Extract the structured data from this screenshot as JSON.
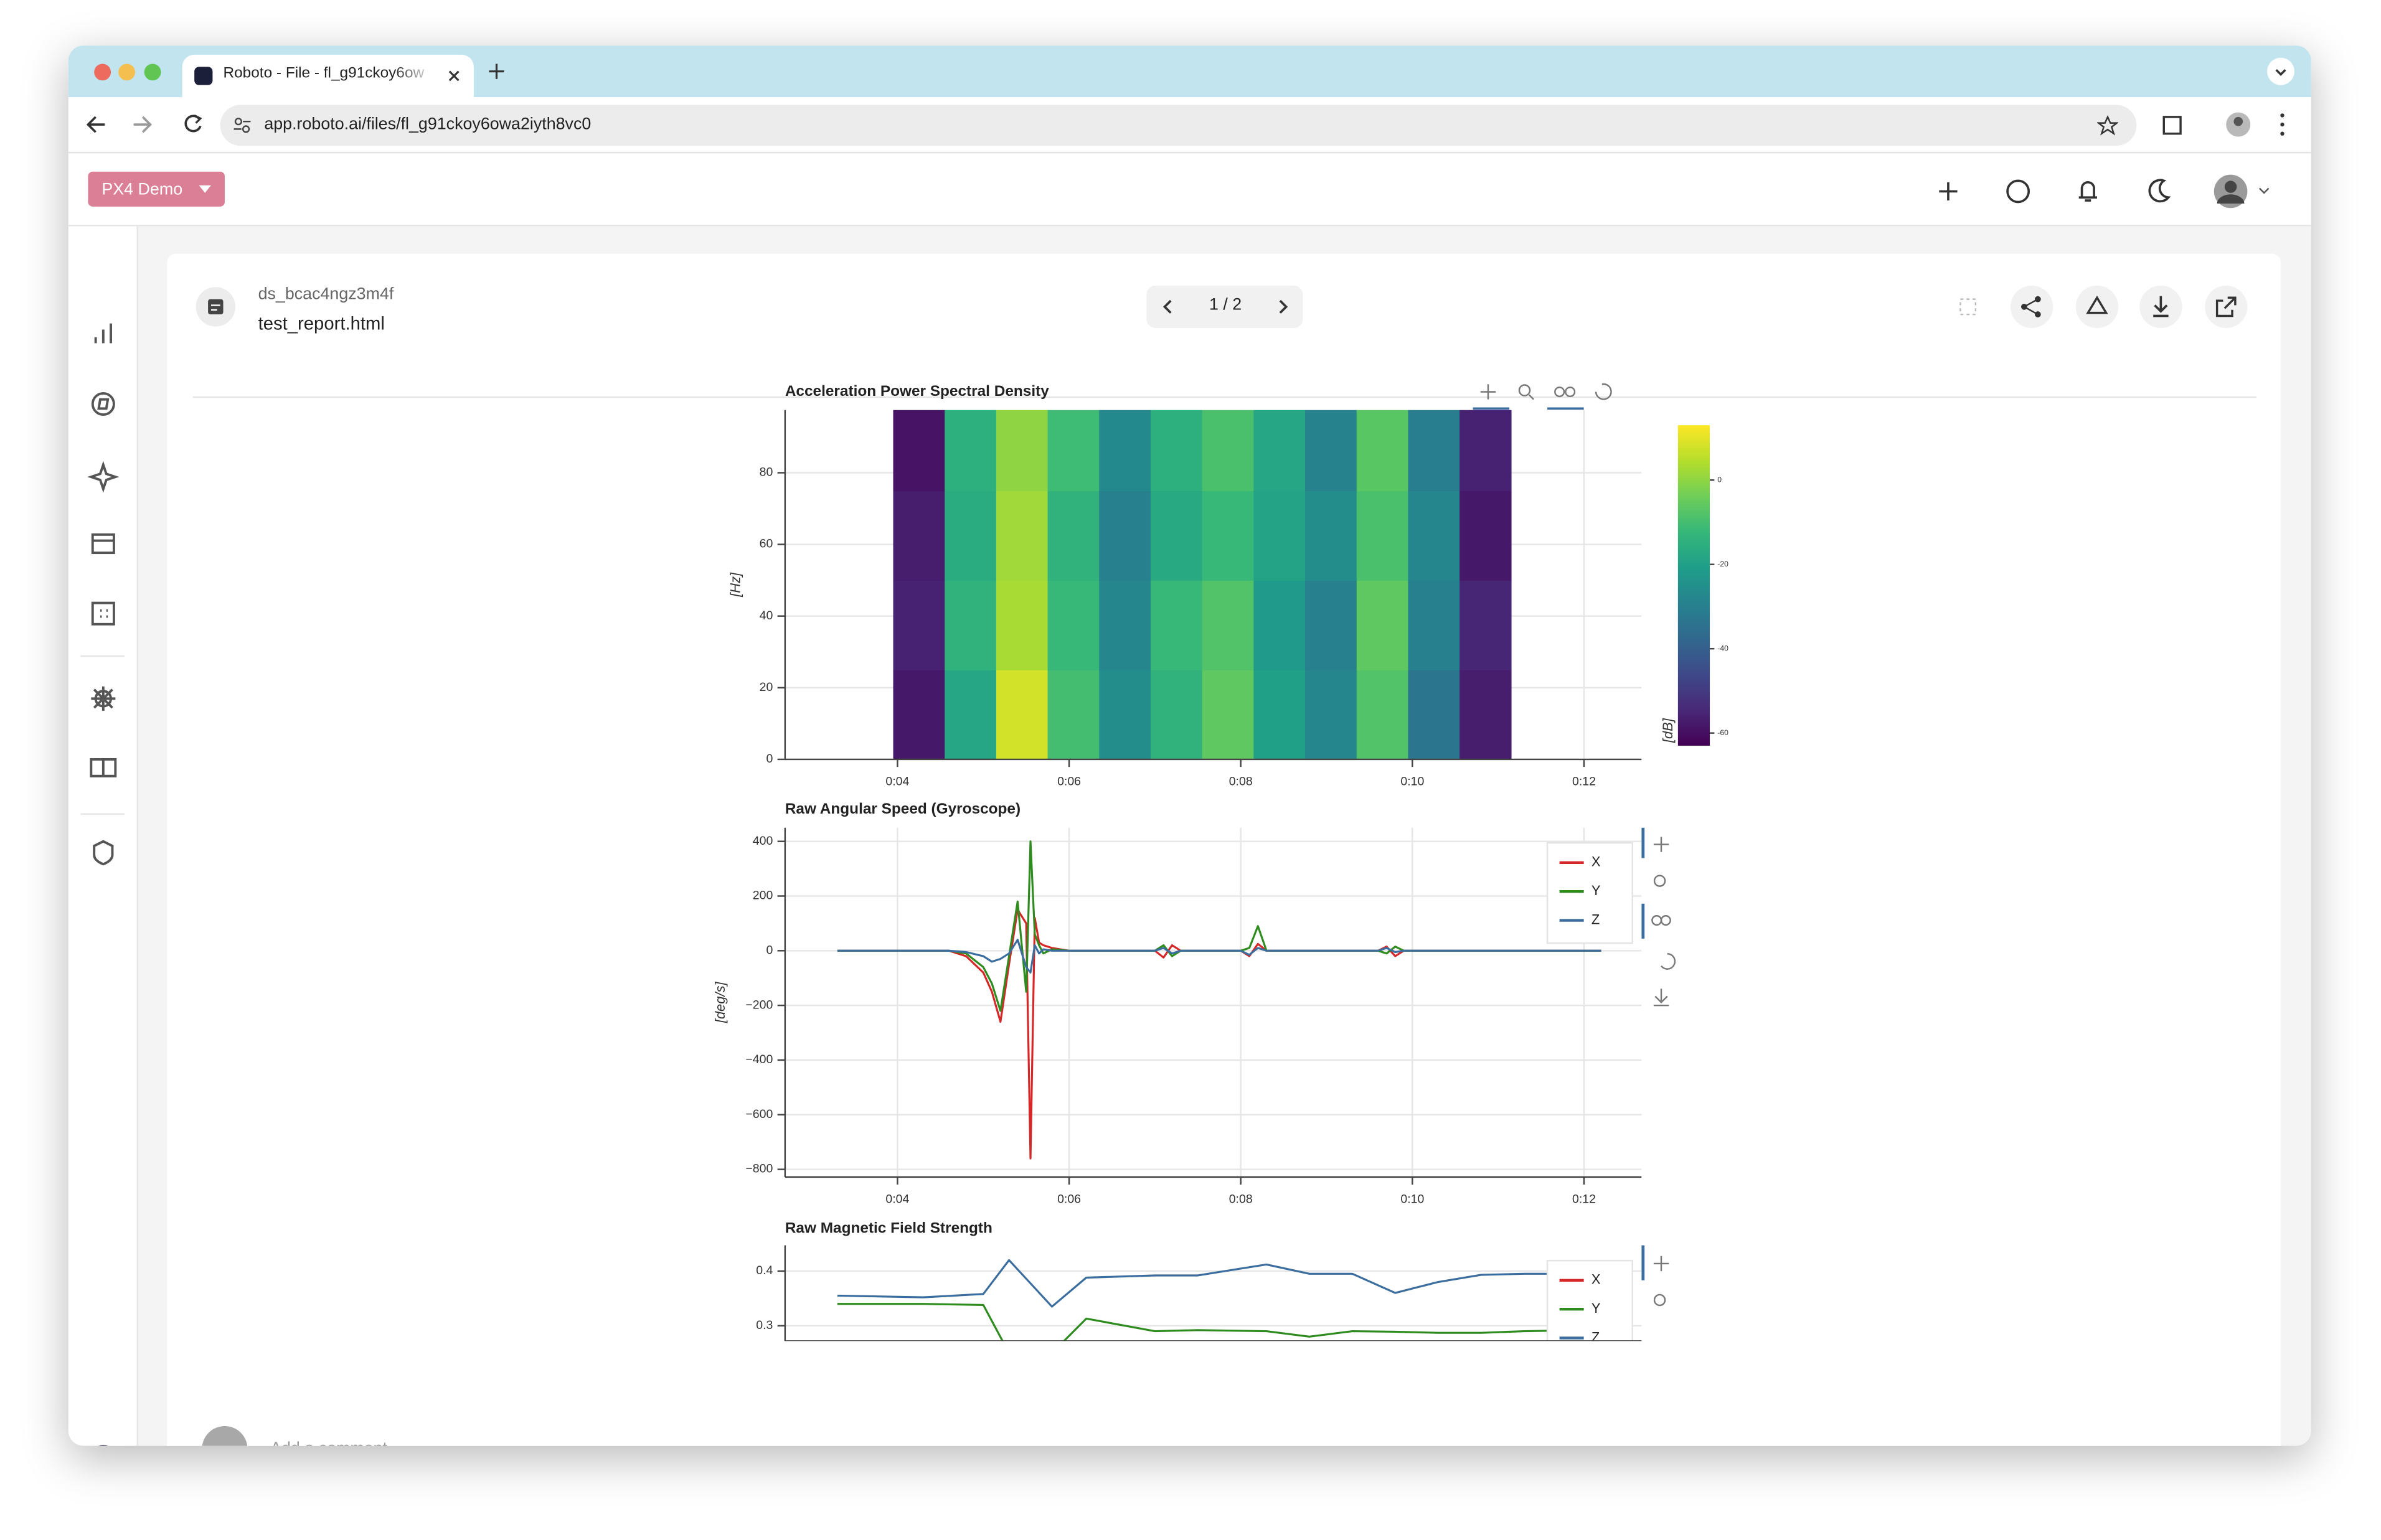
{
  "browser": {
    "tab_title": "Roboto - File - fl_g91ckoy6ow",
    "url": "app.roboto.ai/files/fl_g91ckoy6owa2iyth8vc0"
  },
  "app": {
    "workspace": "PX4 Demo"
  },
  "file": {
    "dataset_id": "ds_bcac4ngz3m4f",
    "name": "test_report.html",
    "page": "1 / 2"
  },
  "comment_placeholder": "Add a comment...",
  "chart_data": [
    {
      "type": "heatmap",
      "title": "Acceleration Power Spectral Density",
      "ylabel": "[Hz]",
      "colorbar_label": "[dB]",
      "colormap": "viridis",
      "x_bins": [
        3.95,
        4.55,
        5.15,
        5.75,
        6.35,
        6.95,
        7.55,
        8.15,
        8.75,
        9.35,
        9.95,
        10.55,
        11.15
      ],
      "y_bins": [
        0,
        25,
        50,
        75,
        97.5
      ],
      "values": [
        [
          -58,
          -56,
          -57,
          -59
        ],
        [
          -18,
          -14,
          -16,
          -15
        ],
        [
          8,
          3,
          2,
          0
        ],
        [
          -10,
          -12,
          -14,
          -11
        ],
        [
          -26,
          -28,
          -30,
          -27
        ],
        [
          -14,
          -12,
          -17,
          -15
        ],
        [
          -6,
          -8,
          -12,
          -9
        ],
        [
          -20,
          -22,
          -19,
          -18
        ],
        [
          -28,
          -30,
          -26,
          -29
        ],
        [
          -8,
          -6,
          -9,
          -7
        ],
        [
          -33,
          -30,
          -28,
          -31
        ],
        [
          -57,
          -55,
          -58,
          -56
        ]
      ],
      "xlim": [
        2.69,
        12.67
      ],
      "xticks": [
        {
          "value": 4,
          "label": "0:04"
        },
        {
          "value": 6,
          "label": "0:06"
        },
        {
          "value": 8,
          "label": "0:08"
        },
        {
          "value": 10,
          "label": "0:10"
        },
        {
          "value": 12,
          "label": "0:12"
        }
      ],
      "ylim": [
        0,
        97.5
      ],
      "yticks": [
        0,
        20,
        40,
        60,
        80
      ],
      "grid": true,
      "clim": [
        -63,
        13
      ],
      "cticks": [
        {
          "value": 0,
          "label": "0"
        },
        {
          "value": -20,
          "label": "-20"
        },
        {
          "value": -40,
          "label": "-40"
        },
        {
          "value": -60,
          "label": "-60"
        }
      ]
    },
    {
      "type": "line",
      "title": "Raw Angular Speed (Gyroscope)",
      "ylabel": "[deg/s]",
      "legend": "top-right",
      "grid": true,
      "x": [
        3.3,
        4.6,
        4.8,
        5.0,
        5.1,
        5.2,
        5.3,
        5.4,
        5.5,
        5.55,
        5.6,
        5.65,
        5.7,
        5.8,
        6.0,
        7.0,
        7.1,
        7.2,
        7.3,
        8.0,
        8.1,
        8.2,
        8.3,
        9.6,
        9.7,
        9.8,
        9.9,
        12.2
      ],
      "series": [
        {
          "name": "X",
          "color": "#d62728",
          "values": [
            0,
            0,
            -20,
            -80,
            -150,
            -260,
            -50,
            150,
            100,
            -760,
            120,
            30,
            20,
            10,
            0,
            0,
            -25,
            20,
            0,
            0,
            -20,
            25,
            0,
            0,
            15,
            -20,
            0,
            0
          ]
        },
        {
          "name": "Y",
          "color": "#2e8b1e",
          "values": [
            0,
            0,
            -10,
            -60,
            -120,
            -220,
            -20,
            180,
            -150,
            400,
            60,
            20,
            -10,
            5,
            0,
            0,
            20,
            -20,
            0,
            0,
            10,
            90,
            0,
            0,
            -10,
            15,
            0,
            0
          ]
        },
        {
          "name": "Z",
          "color": "#3b6e9e",
          "values": [
            0,
            0,
            -5,
            -20,
            -40,
            -30,
            -10,
            40,
            -60,
            -80,
            20,
            -10,
            5,
            0,
            0,
            0,
            10,
            -10,
            0,
            0,
            -15,
            10,
            0,
            0,
            10,
            -5,
            0,
            0
          ]
        }
      ],
      "xlim": [
        2.69,
        12.67
      ],
      "xticks": [
        {
          "value": 4,
          "label": "0:04"
        },
        {
          "value": 6,
          "label": "0:06"
        },
        {
          "value": 8,
          "label": "0:08"
        },
        {
          "value": 10,
          "label": "0:10"
        },
        {
          "value": 12,
          "label": "0:12"
        }
      ],
      "ylim": [
        -828,
        450
      ],
      "yticks": [
        400,
        200,
        0,
        {
          "value": -200,
          "label": "−200"
        },
        {
          "value": -400,
          "label": "−400"
        },
        {
          "value": -600,
          "label": "−600"
        },
        {
          "value": -800,
          "label": "−800"
        }
      ]
    },
    {
      "type": "line",
      "title": "Raw Magnetic Field Strength",
      "legend": "top-right",
      "grid": true,
      "x": [
        3.3,
        4.3,
        5.0,
        5.3,
        5.8,
        6.2,
        7.0,
        7.5,
        8.3,
        8.8,
        9.3,
        9.8,
        10.3,
        10.8,
        11.3,
        12.0
      ],
      "series": [
        {
          "name": "X",
          "color": "#d62728",
          "values": [
            null,
            null,
            null,
            null,
            null,
            null,
            null,
            null,
            null,
            null,
            null,
            null,
            null,
            null,
            null,
            null
          ]
        },
        {
          "name": "Y",
          "color": "#2e8b1e",
          "values": [
            0.34,
            0.34,
            0.338,
            0.25,
            0.25,
            0.313,
            0.29,
            0.292,
            0.29,
            0.28,
            0.29,
            0.289,
            0.287,
            0.287,
            0.29,
            0.292
          ]
        },
        {
          "name": "Z",
          "color": "#3b6e9e",
          "values": [
            0.355,
            0.352,
            0.358,
            0.42,
            0.335,
            0.388,
            0.392,
            0.392,
            0.412,
            0.395,
            0.395,
            0.36,
            0.38,
            0.393,
            0.395,
            0.395
          ]
        }
      ],
      "xlim": [
        2.69,
        12.67
      ],
      "ylim": [
        0.272,
        0.447
      ],
      "yticks": [
        0.3,
        0.4
      ]
    }
  ]
}
